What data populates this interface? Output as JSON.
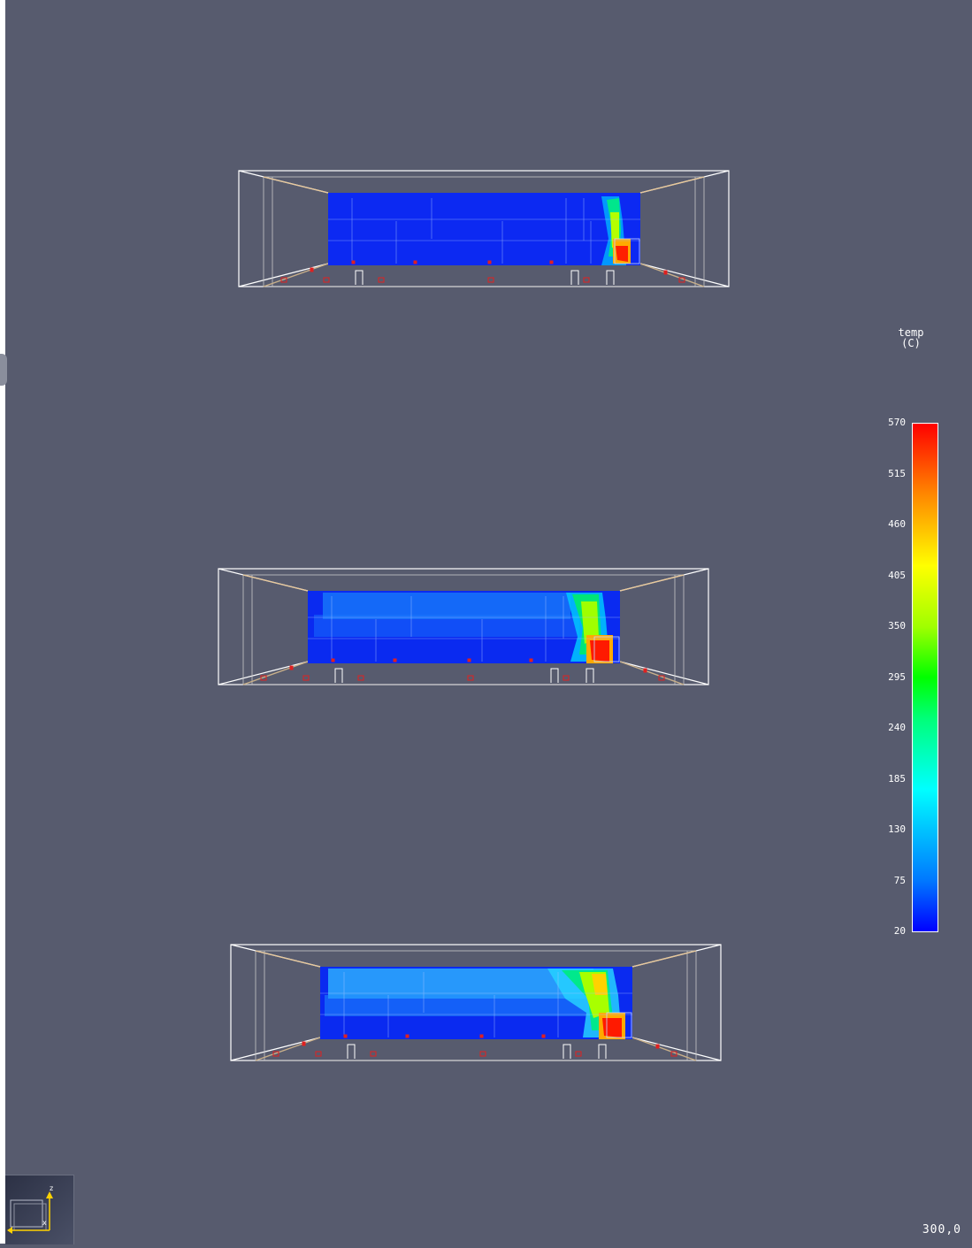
{
  "legend": {
    "title_line1": "temp",
    "title_line2": "(C)",
    "ticks": [
      "570",
      "515",
      "460",
      "405",
      "350",
      "295",
      "240",
      "185",
      "130",
      "75",
      "20"
    ],
    "colors": {
      "low": "#0000ff",
      "mid": "#00ff00",
      "high": "#ff0000"
    }
  },
  "axes": {
    "z_label": "z",
    "x_label": "x"
  },
  "time_readout": "300,0",
  "background": "#575b6e"
}
